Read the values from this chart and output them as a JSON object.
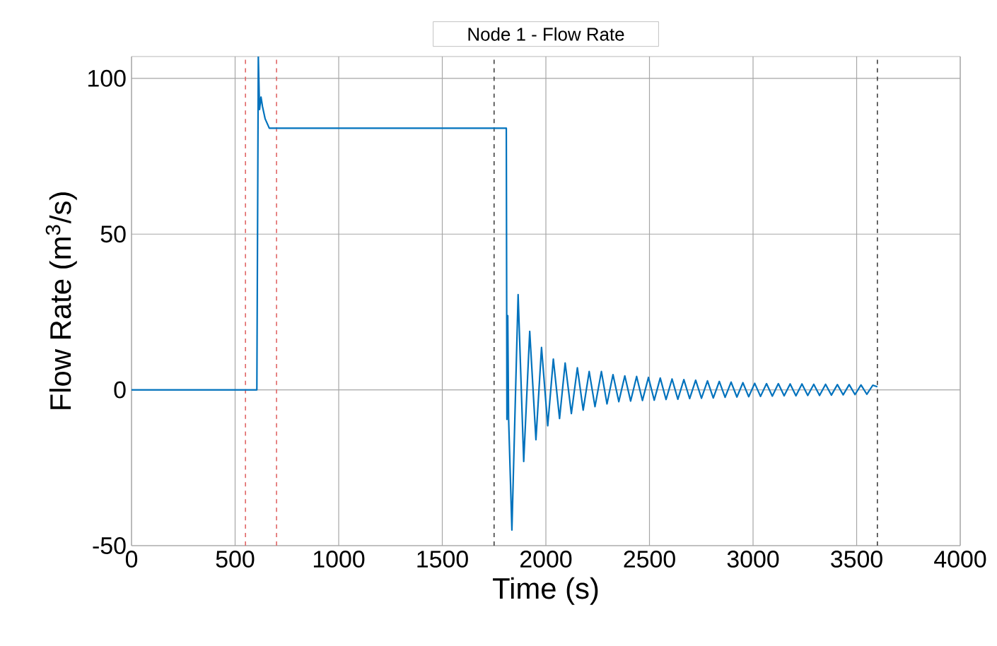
{
  "chart_data": {
    "type": "line",
    "title": "Node 1 - Flow Rate",
    "xlabel": "Time (s)",
    "ylabel": "Flow Rate (m$^{3}$/s)",
    "xlim": [
      0,
      4000
    ],
    "ylim": [
      -50,
      107
    ],
    "xticks": [
      0,
      500,
      1000,
      1500,
      2000,
      2500,
      3000,
      3500,
      4000
    ],
    "yticks": [
      -50,
      0,
      50,
      100
    ],
    "grid": true,
    "line_style": "solid",
    "marker": "none",
    "series": [
      {
        "color": "#0072bd",
        "x": [
          0,
          605,
          612,
          618,
          625,
          632,
          645,
          665,
          700,
          1809,
          1812,
          1816,
          1820,
          1836,
          1866,
          1893,
          1922,
          1952,
          1979,
          2009,
          2036,
          2066,
          2093,
          2123,
          2152,
          2180,
          2209,
          2237,
          2268,
          2295,
          2324,
          2352,
          2381,
          2409,
          2438,
          2466,
          2495,
          2523,
          2552,
          2580,
          2609,
          2637,
          2666,
          2694,
          2723,
          2751,
          2780,
          2808,
          2837,
          2865,
          2894,
          2922,
          2951,
          2979,
          3008,
          3036,
          3065,
          3093,
          3122,
          3150,
          3179,
          3207,
          3236,
          3264,
          3293,
          3321,
          3350,
          3378,
          3407,
          3435,
          3464,
          3492,
          3521,
          3549,
          3578,
          3600
        ],
        "values": [
          0,
          0,
          107,
          90,
          94,
          91,
          87,
          84,
          84,
          84,
          -9.5,
          23.8,
          -9,
          -45,
          30.6,
          -23,
          18.8,
          -16,
          13.6,
          -11.5,
          9.9,
          -9.2,
          8.6,
          -7.6,
          7.1,
          -6.5,
          5.9,
          -5.4,
          5.9,
          -4.5,
          4.9,
          -3.8,
          4.5,
          -3.6,
          4.3,
          -3.4,
          4,
          -3.3,
          3.8,
          -3.1,
          3.5,
          -3,
          3.3,
          -2.8,
          3.1,
          -2.7,
          2.9,
          -2.6,
          2.7,
          -2.4,
          2.5,
          -2.3,
          2.3,
          -2.2,
          2.1,
          -2.1,
          2,
          -2,
          2,
          -1.9,
          1.9,
          -1.9,
          1.9,
          -1.8,
          1.8,
          -1.8,
          1.8,
          -1.7,
          1.7,
          -1.6,
          1.7,
          -1.5,
          1.6,
          -1.4,
          1.5,
          1
        ]
      }
    ],
    "ref_lines": [
      {
        "axis": "x",
        "value": 550,
        "color": "#e06666",
        "line_style": "dashed"
      },
      {
        "axis": "x",
        "value": 700,
        "color": "#e06666",
        "line_style": "dashed"
      },
      {
        "axis": "x",
        "value": 1750,
        "color": "#404040",
        "line_style": "dashed"
      },
      {
        "axis": "x",
        "value": 3600,
        "color": "#404040",
        "line_style": "dashed"
      }
    ]
  }
}
